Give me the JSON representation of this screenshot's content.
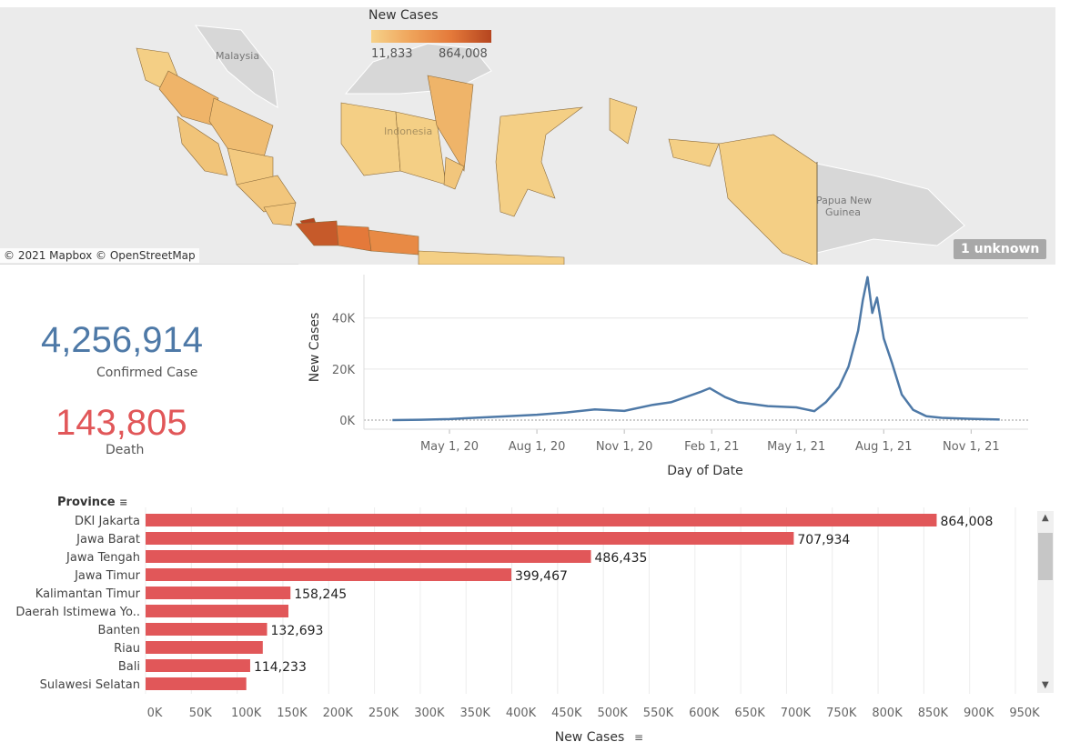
{
  "map": {
    "legend_title": "New Cases",
    "legend_min": "11,833",
    "legend_max": "864,008",
    "attribution": "© 2021 Mapbox © OpenStreetMap",
    "unknown_badge": "1 unknown",
    "labels": {
      "malaysia": "Malaysia",
      "indonesia": "Indonesia",
      "png_1": "Papua New",
      "png_2": "Guinea"
    },
    "colors": {
      "low": "#f6d28a",
      "mid": "#efa35a",
      "high": "#e4793a",
      "max": "#b5451f"
    }
  },
  "kpi": {
    "confirmed_value": "4,256,914",
    "confirmed_label": "Confirmed Case",
    "confirmed_color": "#4e79a7",
    "death_value": "143,805",
    "death_label": "Death",
    "death_color": "#e15759"
  },
  "chart_data": [
    {
      "type": "line",
      "xlabel": "Day of Date",
      "ylabel": "New Cases",
      "x_ticks": [
        "May 1, 20",
        "Aug 1, 20",
        "Nov 1, 20",
        "Feb 1, 21",
        "May 1, 21",
        "Aug 1, 21",
        "Nov 1, 21"
      ],
      "y_ticks": [
        "0K",
        "20K",
        "40K"
      ],
      "ylim": [
        0,
        57000
      ],
      "color": "#4e79a7",
      "series": [
        {
          "x": [
            "2020-03-02",
            "2020-04-01",
            "2020-05-01",
            "2020-06-01",
            "2020-07-01",
            "2020-08-01",
            "2020-09-01",
            "2020-10-01",
            "2020-11-01",
            "2020-12-01",
            "2020-12-20",
            "2021-01-01",
            "2021-01-20",
            "2021-01-30",
            "2021-02-15",
            "2021-03-01",
            "2021-04-01",
            "2021-05-01",
            "2021-05-20",
            "2021-06-01",
            "2021-06-15",
            "2021-06-25",
            "2021-07-05",
            "2021-07-10",
            "2021-07-15",
            "2021-07-20",
            "2021-07-25",
            "2021-08-01",
            "2021-08-10",
            "2021-08-20",
            "2021-09-01",
            "2021-09-15",
            "2021-10-01",
            "2021-11-01",
            "2021-12-01"
          ],
          "values": [
            0,
            150,
            400,
            1000,
            1500,
            2100,
            3000,
            4200,
            3600,
            6000,
            7000,
            8500,
            11000,
            12500,
            9000,
            7000,
            5500,
            5000,
            3500,
            7000,
            13000,
            21000,
            35000,
            47000,
            56000,
            42000,
            48000,
            32000,
            22000,
            10000,
            4000,
            1500,
            900,
            500,
            200
          ]
        }
      ]
    },
    {
      "type": "bar",
      "xlabel": "New Cases",
      "ylabel": "Province",
      "categories": [
        "DKI Jakarta",
        "Jawa Barat",
        "Jawa Tengah",
        "Jawa Timur",
        "Kalimantan Timur",
        "Daerah Istimewa Yo..",
        "Banten",
        "Riau",
        "Bali",
        "Sulawesi Selatan"
      ],
      "values": [
        864008,
        707934,
        486435,
        399467,
        158245,
        156000,
        132693,
        128000,
        114233,
        110000
      ],
      "value_labels": [
        "864,008",
        "707,934",
        "486,435",
        "399,467",
        "158,245",
        "",
        "132,693",
        "",
        "114,233",
        ""
      ],
      "x_ticks": [
        "0K",
        "50K",
        "100K",
        "150K",
        "200K",
        "250K",
        "300K",
        "350K",
        "400K",
        "450K",
        "500K",
        "550K",
        "600K",
        "650K",
        "700K",
        "750K",
        "800K",
        "850K",
        "900K",
        "950K"
      ],
      "xlim": [
        0,
        950000
      ],
      "color": "#e15759"
    }
  ]
}
